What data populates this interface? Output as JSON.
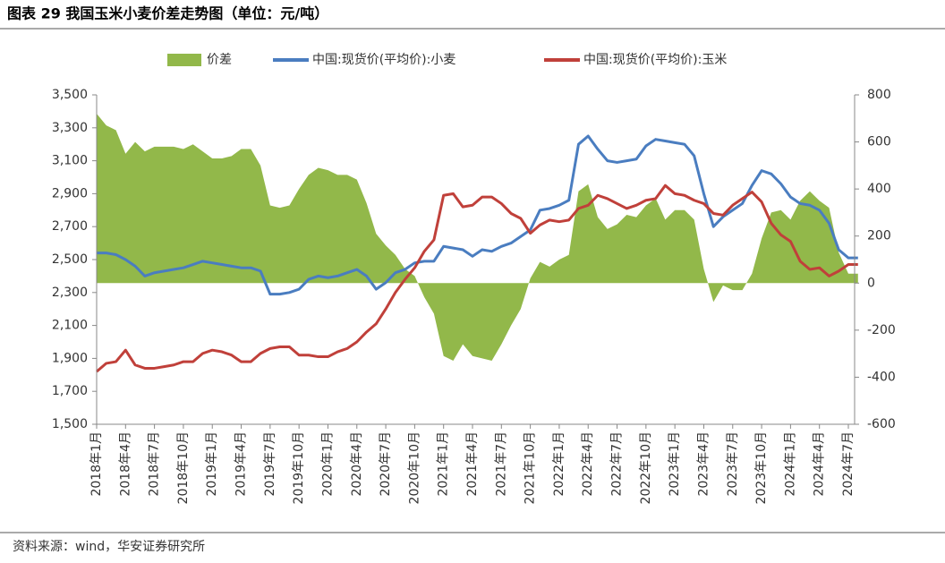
{
  "chart_data": {
    "type": "line",
    "title": "图表 29 我国玉米小麦价差走势图（单位：元/吨）",
    "source": "资料来源：wind，华安证券研究所",
    "categories": [
      "2018年1月",
      null,
      null,
      "2018年4月",
      null,
      null,
      "2018年7月",
      null,
      null,
      "2018年10月",
      null,
      null,
      "2019年1月",
      null,
      null,
      "2019年4月",
      null,
      null,
      "2019年7月",
      null,
      null,
      "2019年10月",
      null,
      null,
      "2020年1月",
      null,
      null,
      "2020年4月",
      null,
      null,
      "2020年7月",
      null,
      null,
      "2020年10月",
      null,
      null,
      "2021年1月",
      null,
      null,
      "2021年4月",
      null,
      null,
      "2021年7月",
      null,
      null,
      "2021年10月",
      null,
      null,
      "2022年1月",
      null,
      null,
      "2022年4月",
      null,
      null,
      "2022年7月",
      null,
      null,
      "2022年10月",
      null,
      null,
      "2023年1月",
      null,
      null,
      "2023年4月",
      null,
      null,
      "2023年7月",
      null,
      null,
      "2023年10月",
      null,
      null,
      "2024年1月",
      null,
      null,
      "2024年4月",
      null,
      null,
      "2024年7月",
      null
    ],
    "ylim": [
      1500,
      3500
    ],
    "yticks": [
      {
        "value": 1500,
        "label": "1,500"
      },
      {
        "value": 1700,
        "label": "1,700"
      },
      {
        "value": 1900,
        "label": "1,900"
      },
      {
        "value": 2100,
        "label": "2,100"
      },
      {
        "value": 2300,
        "label": "2,300"
      },
      {
        "value": 2500,
        "label": "2,500"
      },
      {
        "value": 2700,
        "label": "2,700"
      },
      {
        "value": 2900,
        "label": "2,900"
      },
      {
        "value": 3100,
        "label": "3,100"
      },
      {
        "value": 3300,
        "label": "3,300"
      },
      {
        "value": 3500,
        "label": "3,500"
      }
    ],
    "y2lim": [
      -600,
      800
    ],
    "y2ticks": [
      -600,
      -400,
      -200,
      0,
      200,
      400,
      600,
      800
    ],
    "series": [
      {
        "name": "价差",
        "type": "area",
        "axis": "y2",
        "color": "#92b84a",
        "values": [
          720,
          670,
          650,
          550,
          600,
          560,
          580,
          580,
          580,
          570,
          590,
          560,
          530,
          530,
          540,
          570,
          570,
          500,
          330,
          320,
          330,
          400,
          460,
          490,
          480,
          460,
          460,
          440,
          340,
          210,
          160,
          120,
          60,
          30,
          -60,
          -130,
          -310,
          -330,
          -260,
          -310,
          -320,
          -330,
          -260,
          -180,
          -110,
          20,
          90,
          70,
          100,
          120,
          390,
          420,
          280,
          230,
          250,
          290,
          280,
          330,
          360,
          270,
          310,
          310,
          270,
          60,
          -80,
          -10,
          -30,
          -30,
          40,
          190,
          300,
          310,
          270,
          350,
          390,
          350,
          320,
          130,
          40,
          40
        ]
      },
      {
        "name": "中国:现货价(平均价):小麦",
        "type": "line",
        "color": "#4a7dc0",
        "values": [
          2540,
          2540,
          2530,
          2500,
          2460,
          2400,
          2420,
          2430,
          2440,
          2450,
          2470,
          2490,
          2480,
          2470,
          2460,
          2450,
          2450,
          2430,
          2290,
          2290,
          2300,
          2320,
          2380,
          2400,
          2390,
          2400,
          2420,
          2440,
          2400,
          2320,
          2360,
          2420,
          2440,
          2480,
          2490,
          2490,
          2580,
          2570,
          2560,
          2520,
          2560,
          2550,
          2580,
          2600,
          2640,
          2680,
          2800,
          2810,
          2830,
          2860,
          3200,
          3250,
          3170,
          3100,
          3090,
          3100,
          3110,
          3190,
          3230,
          3220,
          3210,
          3200,
          3130,
          2900,
          2700,
          2760,
          2800,
          2840,
          2950,
          3040,
          3020,
          2960,
          2880,
          2840,
          2830,
          2800,
          2720,
          2560,
          2510,
          2510
        ]
      },
      {
        "name": "中国:现货价(平均价):玉米",
        "type": "line",
        "color": "#c0403a",
        "values": [
          1820,
          1870,
          1880,
          1950,
          1860,
          1840,
          1840,
          1850,
          1860,
          1880,
          1880,
          1930,
          1950,
          1940,
          1920,
          1880,
          1880,
          1930,
          1960,
          1970,
          1970,
          1920,
          1920,
          1910,
          1910,
          1940,
          1960,
          2000,
          2060,
          2110,
          2200,
          2300,
          2380,
          2450,
          2550,
          2620,
          2890,
          2900,
          2820,
          2830,
          2880,
          2880,
          2840,
          2780,
          2750,
          2660,
          2710,
          2740,
          2730,
          2740,
          2810,
          2830,
          2890,
          2870,
          2840,
          2810,
          2830,
          2860,
          2870,
          2950,
          2900,
          2890,
          2860,
          2840,
          2780,
          2770,
          2830,
          2870,
          2910,
          2850,
          2720,
          2650,
          2610,
          2490,
          2440,
          2450,
          2400,
          2430,
          2470,
          2470
        ]
      }
    ]
  }
}
